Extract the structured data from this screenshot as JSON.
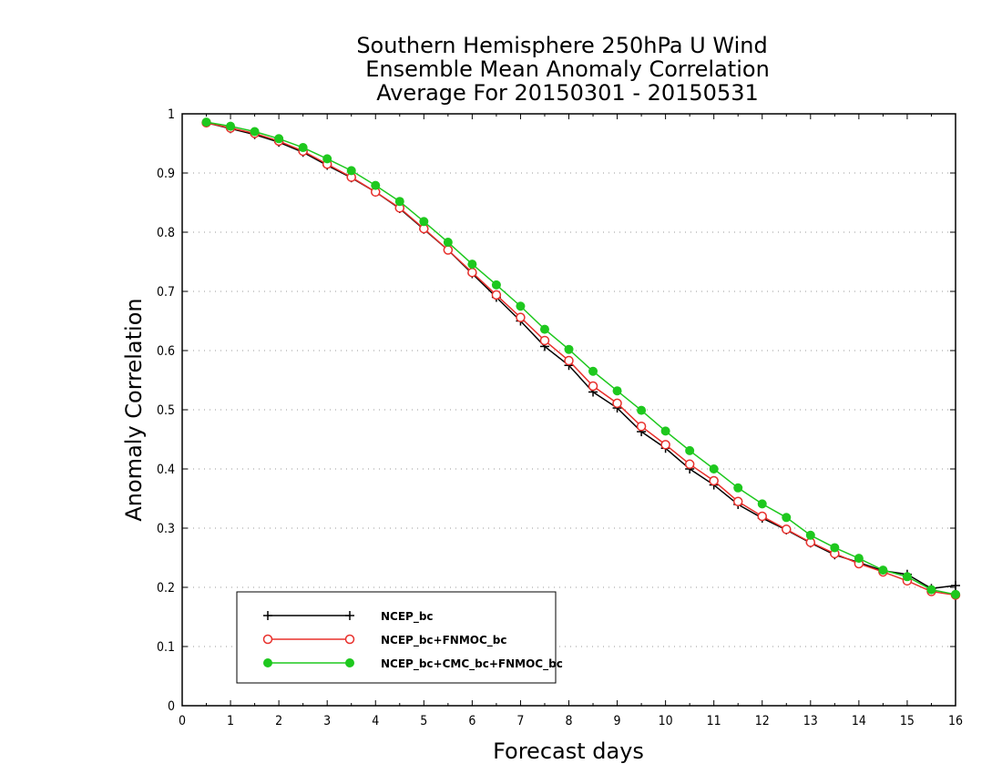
{
  "chart_data": {
    "type": "line",
    "title": [
      "Southern Hemisphere 250hPa U Wind",
      "Ensemble Mean Anomaly Correlation",
      "Average For 20150301 - 20150531"
    ],
    "xlabel": "Forecast days",
    "ylabel": "Anomaly Correlation",
    "xlim": [
      0,
      16
    ],
    "ylim": [
      0,
      1
    ],
    "x_ticks": [
      0,
      1,
      2,
      3,
      4,
      5,
      6,
      7,
      8,
      9,
      10,
      11,
      12,
      13,
      14,
      15,
      16
    ],
    "x_tick_labels": [
      "0",
      "1",
      "2",
      "3",
      "4",
      "5",
      "6",
      "7",
      "8",
      "9",
      "10",
      "11",
      "12",
      "13",
      "14",
      "15",
      "16"
    ],
    "y_ticks": [
      0,
      0.1,
      0.2,
      0.3,
      0.4,
      0.5,
      0.6,
      0.7,
      0.8,
      0.9,
      1
    ],
    "y_tick_labels": [
      "0",
      "0.1",
      "0.2",
      "0.3",
      "0.4",
      "0.5",
      "0.6",
      "0.7",
      "0.8",
      "0.9",
      "1"
    ],
    "grid": "horizontal dotted",
    "legend_position": "bottom-left",
    "x": [
      0.5,
      1,
      1.5,
      2,
      2.5,
      3,
      3.5,
      4,
      4.5,
      5,
      5.5,
      6,
      6.5,
      7,
      7.5,
      8,
      8.5,
      9,
      9.5,
      10,
      10.5,
      11,
      11.5,
      12,
      12.5,
      13,
      13.5,
      14,
      14.5,
      15,
      15.5,
      16
    ],
    "series": [
      {
        "name": "NCEP_bc",
        "color": "#000000",
        "marker": "plus",
        "values": [
          0.985,
          0.975,
          0.965,
          0.952,
          0.935,
          0.913,
          0.892,
          0.868,
          0.84,
          0.805,
          0.77,
          0.73,
          0.69,
          0.65,
          0.607,
          0.575,
          0.53,
          0.503,
          0.463,
          0.435,
          0.4,
          0.373,
          0.34,
          0.317,
          0.297,
          0.275,
          0.255,
          0.242,
          0.228,
          0.222,
          0.198,
          0.203
        ]
      },
      {
        "name": "NCEP_bc+FNMOC_bc",
        "color": "#e8302c",
        "marker": "open-circle",
        "values": [
          0.985,
          0.976,
          0.967,
          0.954,
          0.937,
          0.915,
          0.893,
          0.868,
          0.841,
          0.806,
          0.77,
          0.732,
          0.694,
          0.656,
          0.617,
          0.583,
          0.54,
          0.511,
          0.472,
          0.441,
          0.408,
          0.38,
          0.345,
          0.32,
          0.298,
          0.276,
          0.257,
          0.24,
          0.226,
          0.211,
          0.193,
          0.187
        ]
      },
      {
        "name": "NCEP_bc+CMC_bc+FNMOC_bc",
        "color": "#1ec81e",
        "marker": "filled-circle",
        "values": [
          0.986,
          0.979,
          0.97,
          0.958,
          0.943,
          0.924,
          0.904,
          0.879,
          0.852,
          0.818,
          0.783,
          0.746,
          0.711,
          0.675,
          0.636,
          0.602,
          0.565,
          0.532,
          0.499,
          0.464,
          0.431,
          0.4,
          0.368,
          0.341,
          0.318,
          0.288,
          0.267,
          0.249,
          0.229,
          0.218,
          0.196,
          0.188
        ]
      }
    ]
  }
}
